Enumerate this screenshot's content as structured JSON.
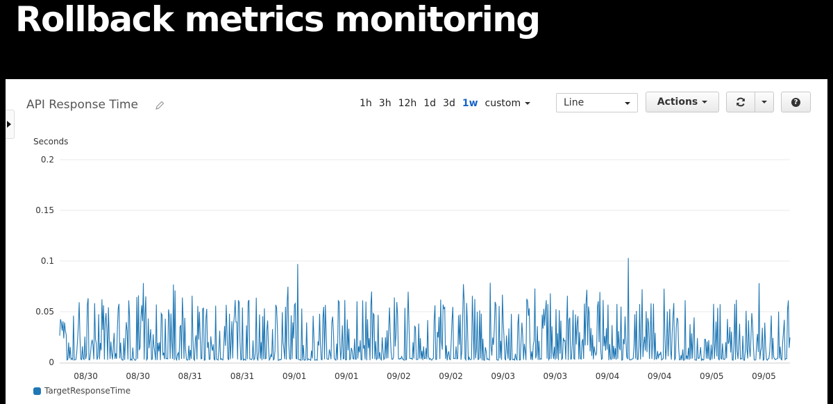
{
  "slide": {
    "title": "Rollback metrics monitoring"
  },
  "widget": {
    "title": "API Response Time",
    "time_ranges": [
      {
        "label": "1h",
        "active": false
      },
      {
        "label": "3h",
        "active": false
      },
      {
        "label": "12h",
        "active": false
      },
      {
        "label": "1d",
        "active": false
      },
      {
        "label": "3d",
        "active": false
      },
      {
        "label": "1w",
        "active": true
      }
    ],
    "custom_label": "custom",
    "view_type": "Line",
    "actions_label": "Actions",
    "help_label": "?"
  },
  "colors": {
    "series": "#1f77b4",
    "active_range": "#1464c8",
    "gridline": "#e8e8e8"
  },
  "icons": [
    "pencil-icon",
    "refresh-icon",
    "chevron-down-icon",
    "help-icon",
    "chevron-right-icon"
  ],
  "chart_data": {
    "type": "line",
    "ylabel": "Seconds",
    "xlabel": "",
    "ylim": [
      0,
      0.2
    ],
    "yticks": [
      "0",
      "0.05",
      "0.1",
      "0.15",
      "0.2"
    ],
    "xticks": [
      "08/30",
      "08/30",
      "08/31",
      "08/31",
      "09/01",
      "09/01",
      "09/02",
      "09/02",
      "09/03",
      "09/03",
      "09/04",
      "09/04",
      "09/05",
      "09/05"
    ],
    "grid": true,
    "legend_position": "bottom-left",
    "series": [
      {
        "name": "TargetResponseTime",
        "description_values": "approx. 0.2 points/hour over 1 week; baseline ~0.003 s with frequent spikes 0.03-0.08 s",
        "peaks": [
          {
            "x": "09/01",
            "y": 0.097
          },
          {
            "x": "09/04",
            "y": 0.103
          }
        ],
        "typical_range": [
          0.002,
          0.08
        ]
      }
    ]
  }
}
